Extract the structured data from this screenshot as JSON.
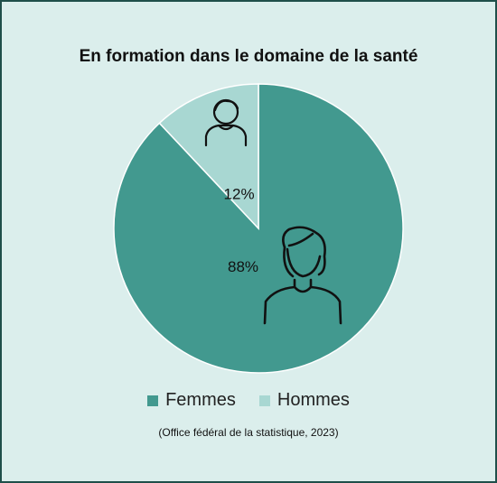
{
  "colors": {
    "femmes": "#42998f",
    "hommes": "#a8d7d2",
    "background": "#dbeeec"
  },
  "chart_data": {
    "type": "pie",
    "title": "En formation dans le domaine de la santé",
    "slices": [
      {
        "name": "Femmes",
        "value": 88,
        "label": "88%",
        "color": "#42998f",
        "icon": "woman-icon"
      },
      {
        "name": "Hommes",
        "value": 12,
        "label": "12%",
        "color": "#a8d7d2",
        "icon": "man-icon"
      }
    ],
    "legend": {
      "placement": "bottom",
      "entries": [
        "Femmes",
        "Hommes"
      ]
    },
    "source": "(Office fédéral de la statistique, 2023)"
  }
}
